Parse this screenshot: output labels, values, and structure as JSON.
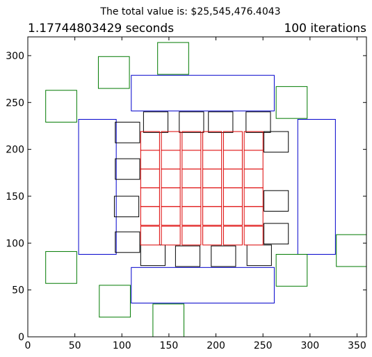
{
  "chart_data": {
    "type": "scatter",
    "title": "The total value is: $25,545,476.4043",
    "subtitle_left": "1.17744803429 seconds",
    "subtitle_right": "100 iterations",
    "xlabel": "",
    "ylabel": "",
    "xlim": [
      0,
      360
    ],
    "ylim": [
      0,
      320
    ],
    "xticks": [
      0,
      50,
      100,
      150,
      200,
      250,
      300,
      350
    ],
    "yticks": [
      0,
      50,
      100,
      150,
      200,
      250,
      300
    ],
    "colors": {
      "blue": "#0000cc",
      "green": "#007a00",
      "black": "#000000",
      "red": "#dd0000"
    },
    "series": [
      {
        "name": "blue",
        "color_key": "blue",
        "rects": [
          [
            110,
            241,
            262,
            279
          ],
          [
            110,
            36,
            262,
            74
          ],
          [
            54,
            88,
            94,
            232
          ],
          [
            287,
            88,
            327,
            232
          ]
        ]
      },
      {
        "name": "green",
        "color_key": "green",
        "rects": [
          [
            138,
            280,
            171,
            314
          ],
          [
            75,
            265,
            108,
            299
          ],
          [
            19,
            229,
            52,
            263
          ],
          [
            264,
            233,
            297,
            267
          ],
          [
            328,
            75,
            360,
            109
          ],
          [
            19,
            57,
            52,
            91
          ],
          [
            264,
            54,
            297,
            88
          ],
          [
            76,
            21,
            109,
            55
          ],
          [
            133,
            0,
            166,
            35
          ]
        ]
      },
      {
        "name": "black",
        "color_key": "black",
        "rects": [
          [
            123,
            218,
            149,
            240
          ],
          [
            161,
            218,
            187,
            240
          ],
          [
            192,
            218,
            218,
            240
          ],
          [
            232,
            218,
            258,
            240
          ],
          [
            93,
            207,
            119,
            229
          ],
          [
            251,
            197,
            277,
            219
          ],
          [
            93,
            168,
            119,
            190
          ],
          [
            92,
            128,
            118,
            150
          ],
          [
            251,
            134,
            277,
            156
          ],
          [
            93,
            90,
            119,
            112
          ],
          [
            251,
            99,
            277,
            121
          ],
          [
            120,
            76,
            146,
            98
          ],
          [
            157,
            75,
            183,
            97
          ],
          [
            195,
            75,
            221,
            97
          ],
          [
            233,
            76,
            259,
            98
          ]
        ]
      },
      {
        "name": "red",
        "color_key": "red",
        "rects": [
          [
            120,
            199,
            140,
            219
          ],
          [
            142,
            199,
            162,
            219
          ],
          [
            164,
            199,
            184,
            219
          ],
          [
            186,
            199,
            206,
            219
          ],
          [
            208,
            199,
            228,
            219
          ],
          [
            230,
            199,
            250,
            219
          ],
          [
            120,
            179,
            140,
            199
          ],
          [
            142,
            179,
            162,
            199
          ],
          [
            164,
            179,
            184,
            199
          ],
          [
            186,
            179,
            206,
            199
          ],
          [
            208,
            179,
            228,
            199
          ],
          [
            230,
            179,
            250,
            199
          ],
          [
            120,
            159,
            140,
            179
          ],
          [
            142,
            159,
            162,
            179
          ],
          [
            164,
            159,
            184,
            179
          ],
          [
            186,
            159,
            206,
            179
          ],
          [
            208,
            159,
            228,
            179
          ],
          [
            230,
            159,
            250,
            179
          ],
          [
            120,
            139,
            140,
            159
          ],
          [
            142,
            139,
            162,
            159
          ],
          [
            164,
            139,
            184,
            159
          ],
          [
            186,
            139,
            206,
            159
          ],
          [
            208,
            139,
            228,
            159
          ],
          [
            230,
            139,
            250,
            159
          ],
          [
            120,
            119,
            140,
            139
          ],
          [
            142,
            119,
            162,
            139
          ],
          [
            164,
            119,
            184,
            139
          ],
          [
            186,
            119,
            206,
            139
          ],
          [
            208,
            119,
            228,
            139
          ],
          [
            230,
            119,
            250,
            139
          ],
          [
            120,
            98,
            140,
            118
          ],
          [
            142,
            98,
            162,
            118
          ],
          [
            164,
            98,
            184,
            118
          ],
          [
            186,
            98,
            206,
            118
          ],
          [
            208,
            98,
            228,
            118
          ],
          [
            230,
            98,
            250,
            118
          ]
        ]
      }
    ]
  }
}
